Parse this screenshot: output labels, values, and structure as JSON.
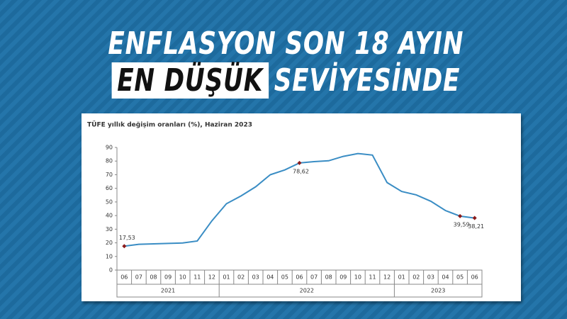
{
  "headline": {
    "line1": "ENFLASYON SON 18 AYIN",
    "highlight": "EN DÜŞÜK",
    "rest": "SEVİYESİNDE"
  },
  "chart_data": {
    "type": "line",
    "title": "TÜFE yıllık değişim oranları (%), Haziran 2023",
    "categories": [
      "06",
      "07",
      "08",
      "09",
      "10",
      "11",
      "12",
      "01",
      "02",
      "03",
      "04",
      "05",
      "06",
      "07",
      "08",
      "09",
      "10",
      "11",
      "12",
      "01",
      "02",
      "03",
      "04",
      "05",
      "06"
    ],
    "years": [
      "2021",
      "2022",
      "2023"
    ],
    "series": [
      {
        "name": "TÜFE",
        "color": "#3a8dc4",
        "marker_color": "#8b1a1a",
        "values": [
          17.53,
          18.95,
          19.25,
          19.58,
          19.89,
          21.31,
          36.08,
          48.69,
          54.44,
          61.14,
          69.97,
          73.5,
          78.62,
          79.6,
          80.21,
          83.45,
          85.51,
          84.39,
          64.27,
          57.68,
          55.18,
          50.51,
          43.68,
          39.59,
          38.21
        ],
        "value_labels": [
          "17,53",
          null,
          null,
          null,
          null,
          null,
          null,
          null,
          null,
          null,
          null,
          null,
          "78,62",
          null,
          null,
          null,
          null,
          null,
          null,
          null,
          null,
          null,
          null,
          "39,59",
          "38,21"
        ]
      }
    ],
    "ylim": [
      0,
      90
    ],
    "yticks": [
      0,
      10,
      20,
      30,
      40,
      50,
      60,
      70,
      80,
      90
    ],
    "grid": false
  }
}
